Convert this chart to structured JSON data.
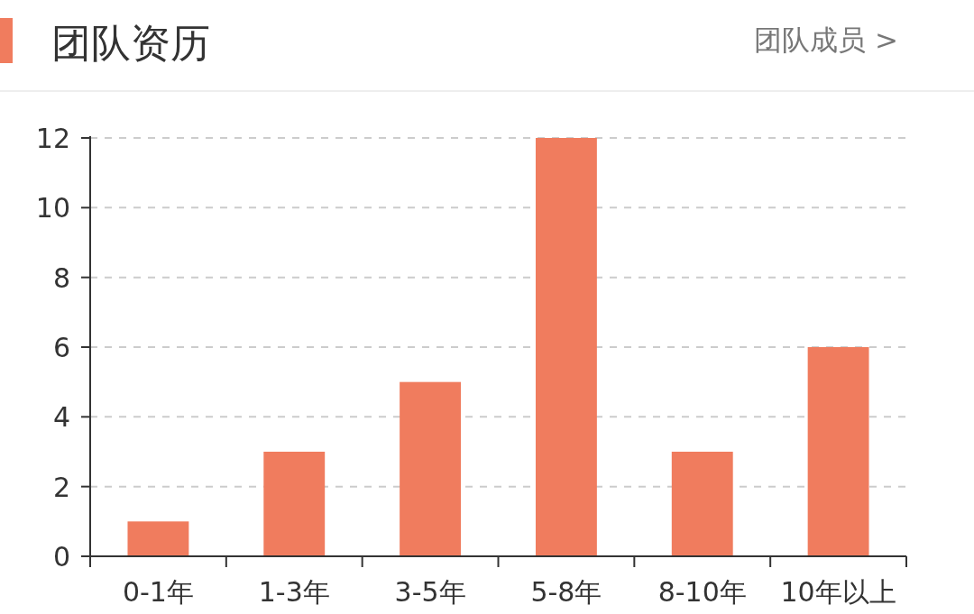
{
  "chart_data": {
    "type": "bar",
    "title": "团队资历",
    "annotations": [
      "团队成员 >"
    ],
    "categories": [
      "0-1年",
      "1-3年",
      "3-5年",
      "5-8年",
      "8-10年",
      "10年以上"
    ],
    "values": [
      1,
      3,
      5,
      12,
      3,
      6
    ],
    "color": "#f07c5e",
    "ylim": [
      0,
      12
    ],
    "yticks": [
      0,
      2,
      4,
      6,
      8,
      10,
      12
    ],
    "grid": "y"
  }
}
